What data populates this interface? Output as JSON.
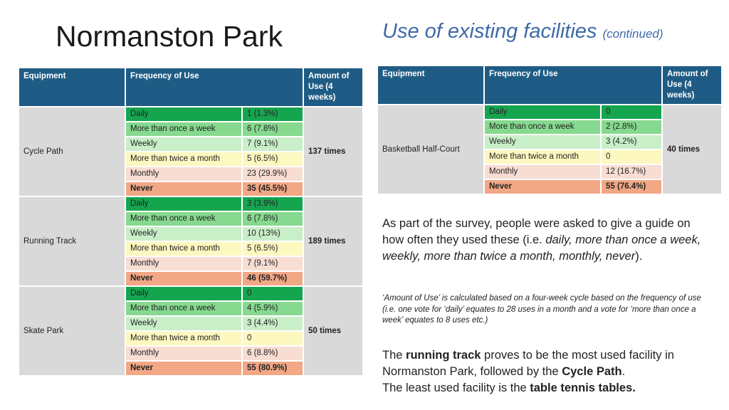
{
  "title": "Normanston Park",
  "subtitle": {
    "main": "Use of existing facilities",
    "continued": "(continued)"
  },
  "headers": {
    "equipment": "Equipment",
    "frequency": "Frequency of Use",
    "amount": "Amount of Use (4 weeks)"
  },
  "left_table": [
    {
      "equipment": "Cycle Path",
      "amount": "137 times",
      "rows": [
        {
          "freq": "Daily",
          "count": "1 (1.3%)"
        },
        {
          "freq": "More than once a week",
          "count": "6 (7.8%)"
        },
        {
          "freq": "Weekly",
          "count": "7 (9.1%)"
        },
        {
          "freq": "More than twice a month",
          "count": "5 (6.5%)"
        },
        {
          "freq": "Monthly",
          "count": "23 (29.9%)"
        },
        {
          "freq": "Never",
          "count": "35 (45.5%)"
        }
      ]
    },
    {
      "equipment": "Running Track",
      "amount": "189 times",
      "rows": [
        {
          "freq": "Daily",
          "count": "3 (3.9%)"
        },
        {
          "freq": "More than once a week",
          "count": "6 (7.8%)"
        },
        {
          "freq": "Weekly",
          "count": "10 (13%)"
        },
        {
          "freq": "More than twice a month",
          "count": "5 (6.5%)"
        },
        {
          "freq": "Monthly",
          "count": "7 (9.1%)"
        },
        {
          "freq": "Never",
          "count": "46 (59.7%)"
        }
      ]
    },
    {
      "equipment": "Skate Park",
      "amount": "50 times",
      "rows": [
        {
          "freq": "Daily",
          "count": "0"
        },
        {
          "freq": "More than once a week",
          "count": "4 (5.9%)"
        },
        {
          "freq": "Weekly",
          "count": "3 (4.4%)"
        },
        {
          "freq": "More than twice a month",
          "count": "0"
        },
        {
          "freq": "Monthly",
          "count": "6 (8.8%)"
        },
        {
          "freq": "Never",
          "count": "55 (80.9%)"
        }
      ]
    }
  ],
  "right_table": [
    {
      "equipment": "Basketball Half-Court",
      "amount": "40 times",
      "rows": [
        {
          "freq": "Daily",
          "count": "0"
        },
        {
          "freq": "More than once a week",
          "count": "2 (2.8%)"
        },
        {
          "freq": "Weekly",
          "count": "3 (4.2%)"
        },
        {
          "freq": "More than twice a month",
          "count": "0"
        },
        {
          "freq": "Monthly",
          "count": "12 (16.7%)"
        },
        {
          "freq": "Never",
          "count": "55 (76.4%)"
        }
      ]
    }
  ],
  "para1": {
    "a": "As part of the survey, people were asked to give a guide on how often they used these (i.e. ",
    "b": "daily, more than once a week, weekly, more than twice a month, monthly, never",
    "c": ")."
  },
  "para2": "‘Amount of Use’ is calculated based on a four-week cycle based on the frequency of use (i.e. one vote for ‘daily’ equates to 28 uses in a month and a vote for ‘more than once a week’ equates to 8 uses etc.)",
  "para3": {
    "a": "The ",
    "b": "running track",
    "c": " proves to be the most used facility in Normanston Park, followed by the ",
    "d": "Cycle Path",
    "e": ".",
    "f": "The least used facility is the ",
    "g": "table tennis tables."
  }
}
